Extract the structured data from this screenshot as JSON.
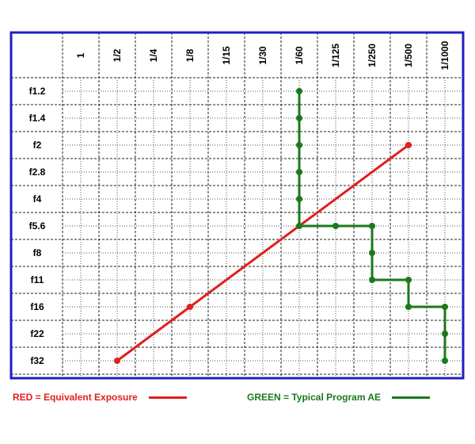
{
  "chart_data": {
    "type": "line",
    "x_label_rotation": "vertical",
    "categories_x": [
      "1",
      "1/2",
      "1/4",
      "1/8",
      "1/15",
      "1/30",
      "1/60",
      "1/125",
      "1/250",
      "1/500",
      "1/1000"
    ],
    "categories_y": [
      "f1.2",
      "f1.4",
      "f2",
      "f2.8",
      "f4",
      "f5.6",
      "f8",
      "f11",
      "f16",
      "f22",
      "f32"
    ],
    "grid": true,
    "minor_grid": "dotted, half-steps",
    "frame_color": "#1f1fbf",
    "series": [
      {
        "name": "RED = Equivalent Exposure",
        "color": "#e02020",
        "points": [
          {
            "x": "1/2",
            "y": "f32",
            "marker": true
          },
          {
            "x": "1/8",
            "y": "f16",
            "marker": true
          },
          {
            "x": "1/500",
            "y": "f2",
            "marker": true
          }
        ]
      },
      {
        "name": "GREEN = Typical Program AE",
        "color": "#1a7a1a",
        "points": [
          {
            "x": "1/60",
            "y": "f1.2",
            "marker": true
          },
          {
            "x": "1/60",
            "y": "f1.4",
            "marker": true
          },
          {
            "x": "1/60",
            "y": "f2",
            "marker": true
          },
          {
            "x": "1/60",
            "y": "f2.8",
            "marker": true
          },
          {
            "x": "1/60",
            "y": "f4",
            "marker": true
          },
          {
            "x": "1/60",
            "y": "f5.6",
            "marker": true
          },
          {
            "x": "1/125",
            "y": "f5.6",
            "marker": true
          },
          {
            "x": "1/250",
            "y": "f5.6",
            "marker": true
          },
          {
            "x": "1/250",
            "y": "f8",
            "marker": true
          },
          {
            "x": "1/250",
            "y": "f11",
            "marker": true
          },
          {
            "x": "1/500",
            "y": "f11",
            "marker": true
          },
          {
            "x": "1/500",
            "y": "f16",
            "marker": true
          },
          {
            "x": "1/1000",
            "y": "f16",
            "marker": true
          },
          {
            "x": "1/1000",
            "y": "f22",
            "marker": true
          },
          {
            "x": "1/1000",
            "y": "f32",
            "marker": true
          }
        ]
      }
    ]
  },
  "legend": {
    "red_label": "RED = Equivalent Exposure",
    "green_label": "GREEN = Typical Program AE",
    "red_color": "#e02020",
    "green_color": "#1a7a1a"
  }
}
